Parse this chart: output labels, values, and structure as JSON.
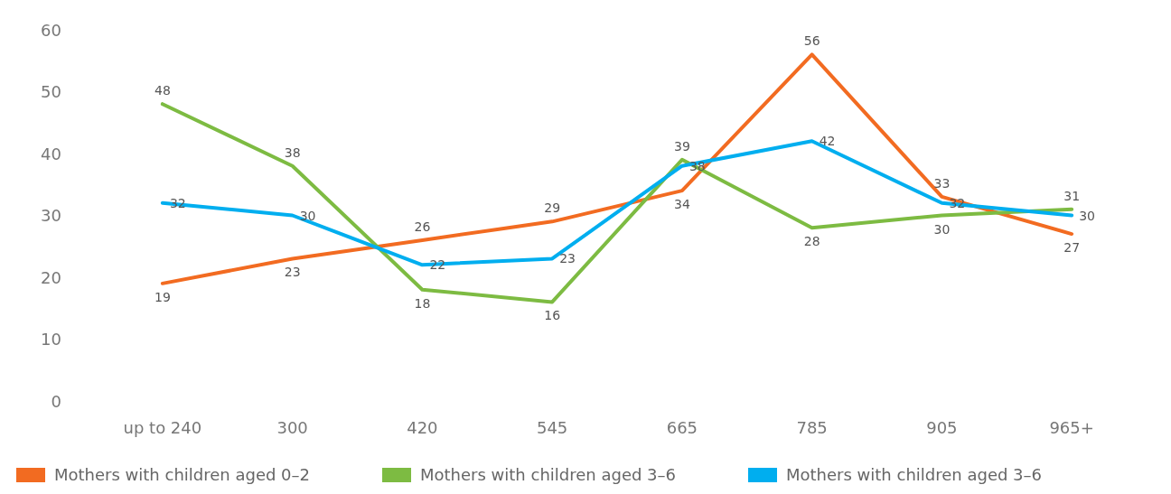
{
  "chart_data": {
    "type": "line",
    "categories": [
      "up to 240",
      "300",
      "420",
      "545",
      "665",
      "785",
      "905",
      "965+"
    ],
    "series": [
      {
        "name": "Mothers with children aged 0–2",
        "color": "#f26b21",
        "values": [
          19,
          23,
          26,
          29,
          34,
          56,
          33,
          27
        ]
      },
      {
        "name": "Mothers with children aged 3–6",
        "color": "#7dbb42",
        "values": [
          48,
          38,
          18,
          16,
          39,
          28,
          30,
          31
        ]
      },
      {
        "name": "Mothers with children aged 3–6",
        "color": "#00aeef",
        "values": [
          32,
          30,
          22,
          23,
          38,
          42,
          32,
          30
        ]
      }
    ],
    "ylim": [
      0,
      60
    ],
    "yticks": [
      0,
      10,
      20,
      30,
      40,
      50,
      60
    ],
    "grid": false,
    "legend": "bottom",
    "marker": "none",
    "line_style": "solid",
    "data_labels": true
  }
}
